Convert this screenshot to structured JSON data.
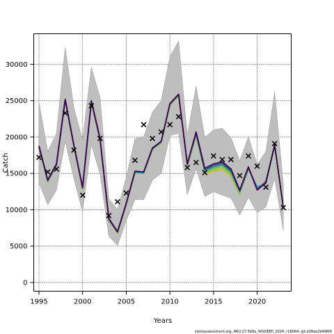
{
  "chart_data": {
    "type": "line",
    "xlabel": "Years",
    "ylabel": "Catch",
    "xlim": [
      1994.4,
      2023.9
    ],
    "ylim": [
      -1200,
      34200
    ],
    "x_ticks": [
      1995,
      2000,
      2005,
      2010,
      2015,
      2020
    ],
    "y_ticks": [
      0,
      5000,
      10000,
      15000,
      20000,
      25000,
      30000
    ],
    "grid": true,
    "footnote": "stockassessment.org, ARU.27.5b6a_WGDEEP_2024, r18064, git:e38ae2b496f0",
    "colors": {
      "band": "#bebebe",
      "band_edge": "#a0a0a0",
      "observation": "#000000",
      "series_palette": [
        "#440154",
        "#3b528b",
        "#21908c",
        "#5dc863",
        "#a0c83a",
        "#c8b820"
      ]
    },
    "confidence_band": {
      "x": [
        1995,
        1996,
        1997,
        1998,
        1999,
        2000,
        2001,
        2002,
        2003,
        2004,
        2005,
        2006,
        2007,
        2008,
        2009,
        2010,
        2011,
        2012,
        2013,
        2014,
        2015,
        2016,
        2017,
        2018,
        2019,
        2020,
        2021,
        2022,
        2023
      ],
      "upper": [
        24800,
        18000,
        20500,
        32300,
        24000,
        19600,
        29600,
        25400,
        11500,
        10000,
        14400,
        19800,
        20000,
        23400,
        25000,
        31000,
        33200,
        20200,
        27000,
        19900,
        21000,
        21200,
        19900,
        16700,
        20000,
        16200,
        18000,
        26200,
        13500
      ],
      "lower": [
        13700,
        10700,
        12700,
        19400,
        14300,
        9700,
        19000,
        14900,
        6400,
        5100,
        8500,
        11400,
        11400,
        14100,
        15000,
        20200,
        20500,
        12100,
        15700,
        11800,
        12500,
        12000,
        11600,
        9300,
        11700,
        9600,
        10400,
        14300,
        7100
      ]
    },
    "series": [
      {
        "x": [
          1995,
          1996,
          1997,
          1998,
          1999,
          2000,
          2001,
          2002,
          2003,
          2004,
          2005,
          2006,
          2007,
          2008,
          2009,
          2010,
          2011,
          2012,
          2013,
          2014,
          2015,
          2016,
          2017,
          2018,
          2019,
          2020,
          2021,
          2022,
          2023
        ],
        "values": [
          18800,
          14100,
          16300,
          25200,
          18900,
          13100,
          25000,
          19800,
          8800,
          7000,
          10900,
          15300,
          15200,
          18500,
          19400,
          24600,
          25900,
          16300,
          20700,
          15700,
          16300,
          16600,
          15600,
          12700,
          15900,
          12700,
          13700,
          18900,
          10300
        ]
      },
      {
        "x": [
          1995,
          1996,
          1997,
          1998,
          1999,
          2000,
          2001,
          2002,
          2003,
          2004,
          2005,
          2006,
          2007,
          2008,
          2009,
          2010,
          2011,
          2012,
          2013,
          2014,
          2015,
          2016,
          2017,
          2018,
          2019,
          2020,
          2021,
          2022
        ],
        "values": [
          18700,
          14000,
          16200,
          25100,
          18800,
          13000,
          24900,
          19700,
          8700,
          6950,
          10850,
          15250,
          15150,
          18450,
          19350,
          24550,
          25850,
          16250,
          20600,
          15500,
          16100,
          16400,
          15400,
          12600,
          15800,
          12800,
          13900,
          18800
        ]
      },
      {
        "x": [
          1995,
          1996,
          1997,
          1998,
          1999,
          2000,
          2001,
          2002,
          2003,
          2004,
          2005,
          2006,
          2007,
          2008,
          2009,
          2010,
          2011,
          2012,
          2013,
          2014,
          2015,
          2016,
          2017,
          2018,
          2019,
          2020,
          2021
        ],
        "values": [
          18650,
          13950,
          16150,
          25050,
          18750,
          12950,
          24850,
          19650,
          8650,
          6900,
          10800,
          15200,
          15100,
          18400,
          19300,
          24500,
          25800,
          16200,
          20400,
          15300,
          15900,
          16200,
          15200,
          12500,
          15700,
          13100,
          13600
        ]
      },
      {
        "x": [
          1995,
          1996,
          1997,
          1998,
          1999,
          2000,
          2001,
          2002,
          2003,
          2004,
          2005,
          2006,
          2007,
          2008,
          2009,
          2010,
          2011,
          2012,
          2013,
          2014,
          2015,
          2016,
          2017,
          2018,
          2019,
          2020
        ],
        "values": [
          18600,
          13900,
          16100,
          25000,
          18700,
          12900,
          24800,
          19600,
          8600,
          6850,
          10750,
          15150,
          15050,
          18350,
          19250,
          24450,
          25750,
          16150,
          20300,
          15200,
          15700,
          16000,
          15000,
          12300,
          15600,
          13100
        ]
      },
      {
        "x": [
          1995,
          1996,
          1997,
          1998,
          1999,
          2000,
          2001,
          2002,
          2003,
          2004,
          2005,
          2006,
          2007,
          2008,
          2009,
          2010,
          2011,
          2012,
          2013,
          2014,
          2015,
          2016,
          2017,
          2018,
          2019
        ],
        "values": [
          18550,
          13850,
          16050,
          24950,
          18650,
          12850,
          24750,
          19550,
          8550,
          6800,
          10700,
          15100,
          15000,
          18300,
          19200,
          24400,
          25700,
          16100,
          20200,
          15100,
          15500,
          15800,
          14800,
          12200,
          15500
        ]
      },
      {
        "x": [
          1995,
          1996,
          1997,
          1998,
          1999,
          2000,
          2001,
          2002,
          2003,
          2004,
          2005,
          2006,
          2007,
          2008,
          2009,
          2010,
          2011,
          2012,
          2013,
          2014,
          2015,
          2016,
          2017,
          2018
        ],
        "values": [
          18500,
          13800,
          16000,
          24900,
          18600,
          12800,
          24700,
          19500,
          8500,
          6750,
          10650,
          15050,
          14950,
          18250,
          19150,
          24350,
          25650,
          16050,
          20100,
          15000,
          15300,
          15600,
          14600,
          12100
        ]
      }
    ],
    "observations": {
      "x": [
        1995,
        1996,
        1997,
        1998,
        1999,
        2000,
        2001,
        2002,
        2003,
        2004,
        2005,
        2006,
        2007,
        2008,
        2009,
        2010,
        2011,
        2012,
        2013,
        2014,
        2015,
        2016,
        2017,
        2018,
        2019,
        2020,
        2021,
        2022,
        2023
      ],
      "values": [
        17200,
        15200,
        15600,
        23300,
        18200,
        12000,
        24300,
        19800,
        9200,
        11100,
        12300,
        16800,
        21700,
        19800,
        20700,
        21700,
        22800,
        15800,
        16500,
        15100,
        17400,
        16900,
        16900,
        14700,
        17400,
        16000,
        13100,
        19100,
        10300
      ]
    }
  }
}
